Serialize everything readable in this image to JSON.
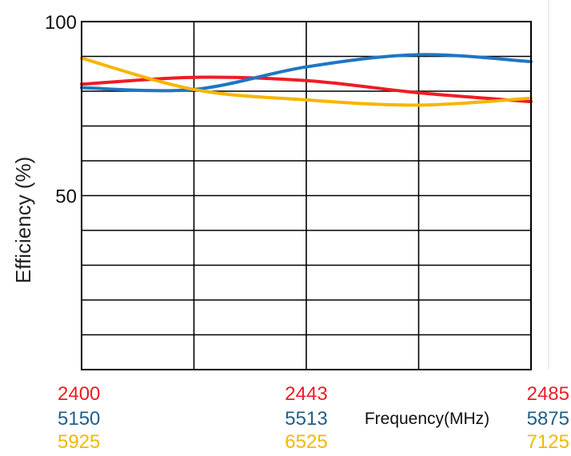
{
  "chart_data": {
    "type": "line",
    "ylabel": "Efficiency (%)",
    "xlabel": "Frequency(MHz)",
    "ylim": [
      0,
      100
    ],
    "yticks": [
      "100",
      "50"
    ],
    "ytick_values": [
      100,
      50
    ],
    "grid": true,
    "x_positions": [
      0,
      0.25,
      0.5,
      0.75,
      1
    ],
    "tick_rows": [
      {
        "color": "#ee1c25",
        "labels": [
          "2400",
          "2443",
          "2485"
        ]
      },
      {
        "color": "#1f5f8b",
        "labels": [
          "5150",
          "5513",
          "5875"
        ]
      },
      {
        "color": "#f5b800",
        "labels": [
          "5925",
          "6525",
          "7125"
        ]
      }
    ],
    "series": [
      {
        "band": "2400-2485 MHz",
        "color": "#ee1c25",
        "x": [
          2400,
          2421.5,
          2443,
          2464,
          2485
        ],
        "values": [
          82,
          84,
          83,
          79.5,
          77
        ]
      },
      {
        "band": "5150-5875 MHz",
        "color": "#1f76c2",
        "x": [
          5150,
          5331,
          5513,
          5694,
          5875
        ],
        "values": [
          81,
          80.5,
          87,
          90.5,
          88.5
        ]
      },
      {
        "band": "5925-7125 MHz",
        "color": "#f7b500",
        "x": [
          5925,
          6225,
          6525,
          6825,
          7125
        ],
        "values": [
          89.5,
          80.5,
          77.5,
          76,
          78
        ]
      }
    ]
  }
}
